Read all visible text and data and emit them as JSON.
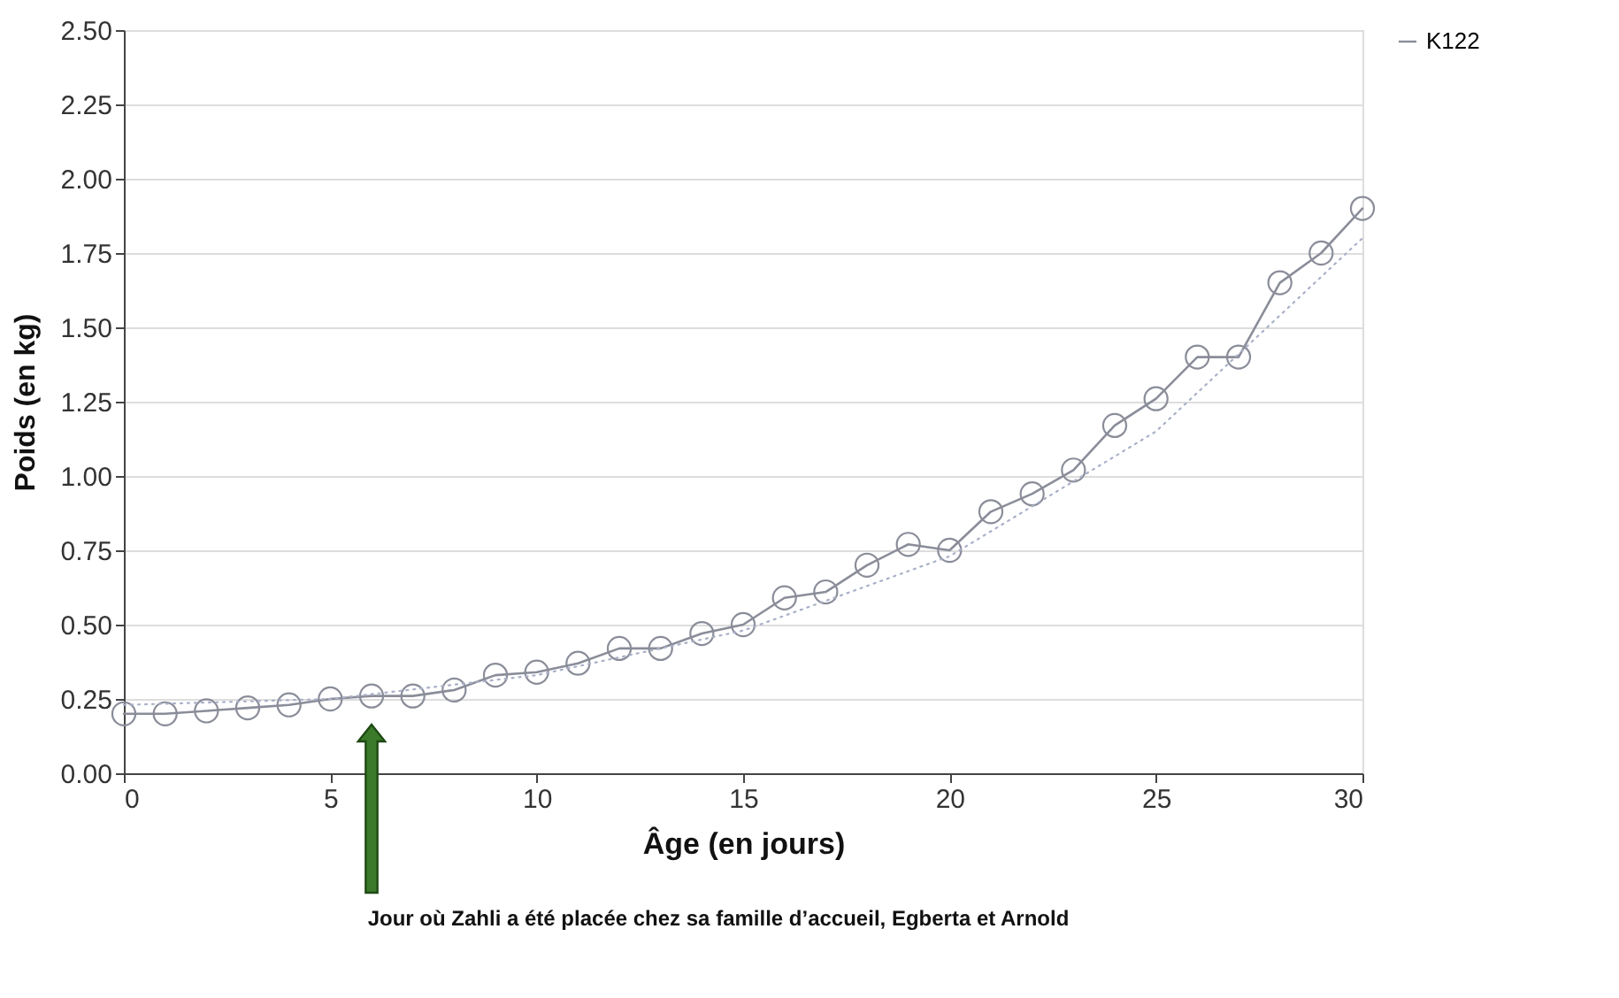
{
  "chart_data": {
    "type": "line",
    "xlabel": "Âge (en jours)",
    "ylabel": "Poids (en kg)",
    "x": [
      0,
      1,
      2,
      3,
      4,
      5,
      6,
      7,
      8,
      9,
      10,
      11,
      12,
      13,
      14,
      15,
      16,
      17,
      18,
      19,
      20,
      21,
      22,
      23,
      24,
      25,
      26,
      27,
      28,
      29,
      30
    ],
    "series": [
      {
        "name": "K122",
        "color": "#8a8d99",
        "marker": "circle",
        "line_style": "solid",
        "values": [
          0.2,
          0.2,
          0.21,
          0.22,
          0.23,
          0.25,
          0.26,
          0.26,
          0.28,
          0.33,
          0.34,
          0.37,
          0.42,
          0.42,
          0.47,
          0.5,
          0.59,
          0.61,
          0.7,
          0.77,
          0.75,
          0.88,
          0.94,
          1.02,
          1.17,
          1.26,
          1.4,
          1.4,
          1.65,
          1.75,
          1.9
        ]
      },
      {
        "type": "line",
        "color": "#a9b0c8",
        "marker": "none",
        "line_style": "dotted",
        "x": [
          0,
          5,
          10,
          15,
          20,
          25,
          30
        ],
        "values": [
          0.23,
          0.25,
          0.33,
          0.48,
          0.73,
          1.15,
          1.8
        ]
      }
    ],
    "xlim": [
      0,
      30
    ],
    "xticks": [
      0,
      5,
      10,
      15,
      20,
      25,
      30
    ],
    "ylim": [
      0,
      2.5
    ],
    "yticks": [
      {
        "value": 0,
        "label": "0.00"
      },
      {
        "value": 0.25,
        "label": "0.25"
      },
      {
        "value": 0.5,
        "label": "0.50"
      },
      {
        "value": 0.75,
        "label": "0.75"
      },
      {
        "value": 1,
        "label": "1.00"
      },
      {
        "value": 1.25,
        "label": "1.25"
      },
      {
        "value": 1.5,
        "label": "1.50"
      },
      {
        "value": 1.75,
        "label": "1.75"
      },
      {
        "value": 2,
        "label": "2.00"
      },
      {
        "value": 2.25,
        "label": "2.25"
      },
      {
        "value": 2.5,
        "label": "2.50"
      }
    ],
    "grid": "y",
    "legend": "right",
    "annotations": [
      "Jour où Zahli a été placée chez sa famille d’accueil, Egberta et Arnold"
    ]
  }
}
